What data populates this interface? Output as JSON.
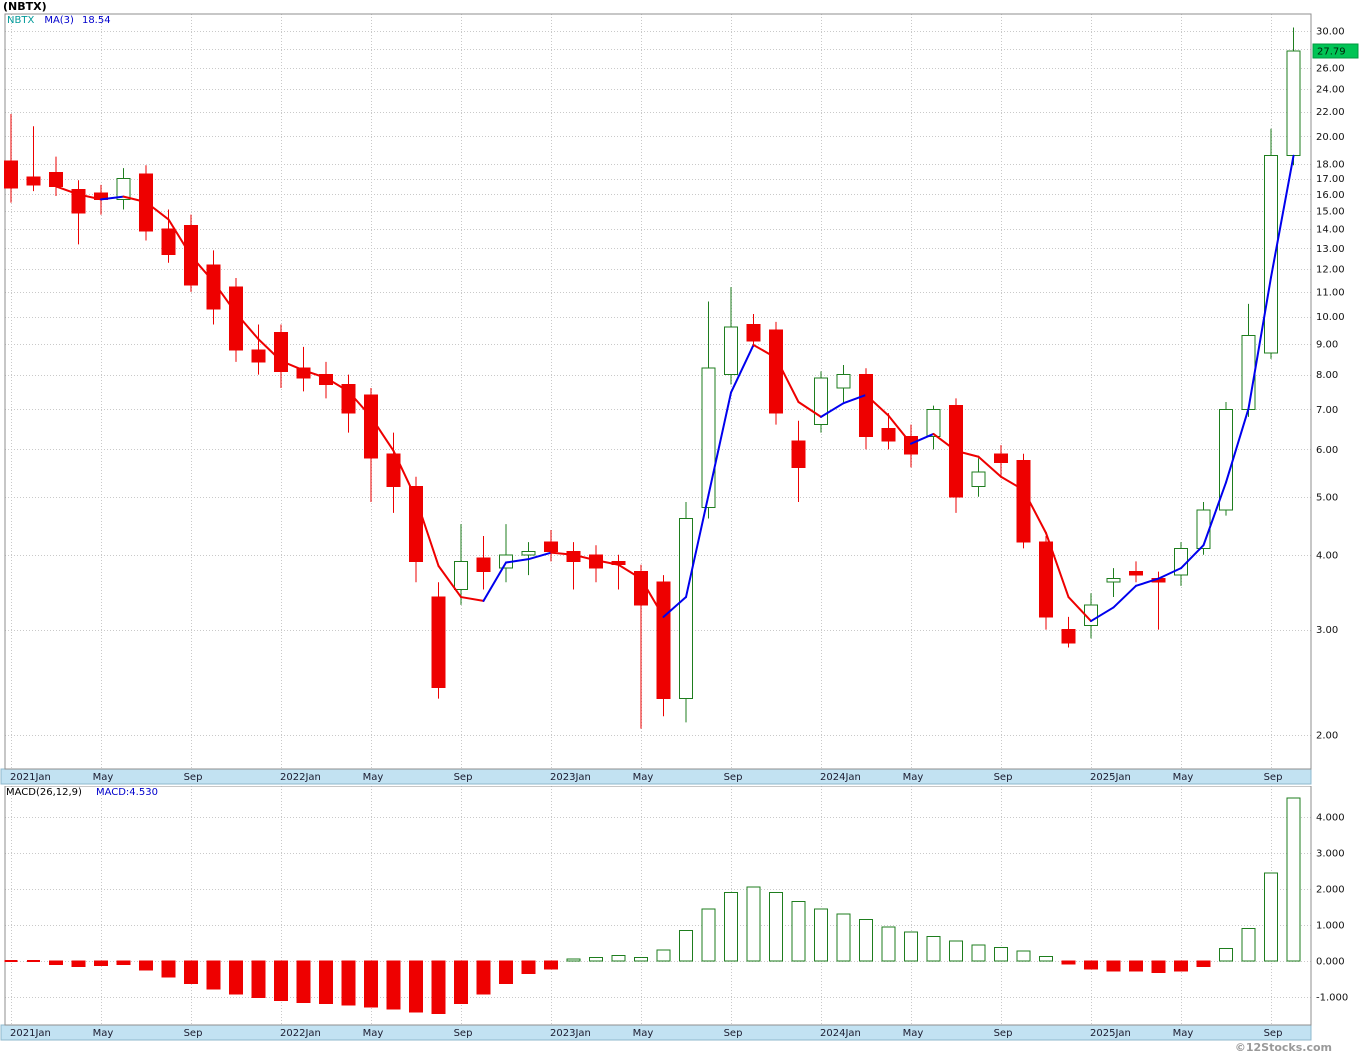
{
  "title": "(NBTX)",
  "symbol": "NBTX",
  "legend": {
    "symbol": "NBTX",
    "ma_label": "MA(3)",
    "ma_value": "18.54"
  },
  "last_price": "27.79",
  "macd_panel": {
    "label": "MACD(26,12,9)",
    "value_label": "MACD:4.530"
  },
  "footer": "©12Stocks.com",
  "colors": {
    "up": "#1e7d1e",
    "down": "#ee0000",
    "up_fill": "#ffffff",
    "ma_rising": "#0000ee",
    "ma_falling": "#ee0000",
    "grid": "#c9c9c9",
    "plot_border": "#8f8f8f",
    "axis_band": "#c2e2f2",
    "band_border": "#8fb8cc",
    "band_text": "#1a1a2e",
    "y_tick_text": "#111111",
    "badge_bg": "#00c455",
    "badge_text": "#00220a",
    "legend_symbol": "#009999",
    "legend_ma": "#0000cc",
    "watermark": "#9a9a9a"
  },
  "chart_data": [
    {
      "type": "candlestick",
      "title": "(NBTX) monthly price with MA(3)",
      "y_scale": "log",
      "ylim": [
        1.75,
        32.0
      ],
      "grid": true,
      "y_ticks": [
        30,
        28,
        26,
        24,
        22,
        20,
        18,
        17,
        16,
        15,
        14,
        13,
        12,
        11,
        10,
        9,
        8,
        7,
        6,
        5,
        4,
        3,
        2
      ],
      "x_tick_labels": [
        "2021Jan",
        "May",
        "Sep",
        "2022Jan",
        "May",
        "Sep",
        "2023Jan",
        "May",
        "Sep",
        "2024Jan",
        "May",
        "Sep",
        "2025Jan",
        "May",
        "Sep"
      ],
      "x_tick_indices": [
        0,
        4,
        8,
        12,
        16,
        20,
        24,
        28,
        32,
        36,
        40,
        44,
        48,
        52,
        56
      ],
      "ma": {
        "period": 3,
        "current": 18.54,
        "rising_color": "#0000ee",
        "falling_color": "#ee0000"
      },
      "last_close": 27.79,
      "categories": [
        "2021-01",
        "2021-02",
        "2021-03",
        "2021-04",
        "2021-05",
        "2021-06",
        "2021-07",
        "2021-08",
        "2021-09",
        "2021-10",
        "2021-11",
        "2021-12",
        "2022-01",
        "2022-02",
        "2022-03",
        "2022-04",
        "2022-05",
        "2022-06",
        "2022-07",
        "2022-08",
        "2022-09",
        "2022-10",
        "2022-11",
        "2022-12",
        "2023-01",
        "2023-02",
        "2023-03",
        "2023-04",
        "2023-05",
        "2023-06",
        "2023-07",
        "2023-08",
        "2023-09",
        "2023-10",
        "2023-11",
        "2023-12",
        "2024-01",
        "2024-02",
        "2024-03",
        "2024-04",
        "2024-05",
        "2024-06",
        "2024-07",
        "2024-08",
        "2024-09",
        "2024-10",
        "2024-11",
        "2024-12",
        "2025-01",
        "2025-02",
        "2025-03",
        "2025-04",
        "2025-05",
        "2025-06",
        "2025-07",
        "2025-08",
        "2025-09",
        "2025-10"
      ],
      "ohlc": [
        [
          18.2,
          21.8,
          15.5,
          16.4
        ],
        [
          17.1,
          20.8,
          16.2,
          16.6
        ],
        [
          17.4,
          18.5,
          15.9,
          16.5
        ],
        [
          16.3,
          16.9,
          13.2,
          14.9
        ],
        [
          16.1,
          16.6,
          14.8,
          15.7
        ],
        [
          15.7,
          17.7,
          15.1,
          17.0
        ],
        [
          17.3,
          17.9,
          13.4,
          13.9
        ],
        [
          14.0,
          15.1,
          12.3,
          12.7
        ],
        [
          14.2,
          14.8,
          11.0,
          11.3
        ],
        [
          12.2,
          12.9,
          9.7,
          10.3
        ],
        [
          11.2,
          11.6,
          8.4,
          8.8
        ],
        [
          8.8,
          9.7,
          8.0,
          8.4
        ],
        [
          9.4,
          9.7,
          7.6,
          8.1
        ],
        [
          8.2,
          8.9,
          7.5,
          7.9
        ],
        [
          8.0,
          8.4,
          7.3,
          7.7
        ],
        [
          7.7,
          8.0,
          6.4,
          6.9
        ],
        [
          7.4,
          7.6,
          4.9,
          5.8
        ],
        [
          5.9,
          6.4,
          4.7,
          5.2
        ],
        [
          5.2,
          5.4,
          3.6,
          3.9
        ],
        [
          3.4,
          3.6,
          2.3,
          2.4
        ],
        [
          3.5,
          4.5,
          3.3,
          3.9
        ],
        [
          3.95,
          4.3,
          3.5,
          3.75
        ],
        [
          3.8,
          4.5,
          3.6,
          4.0
        ],
        [
          4.0,
          4.2,
          3.7,
          4.05
        ],
        [
          4.2,
          4.4,
          3.9,
          4.05
        ],
        [
          4.05,
          4.2,
          3.5,
          3.9
        ],
        [
          4.0,
          4.15,
          3.6,
          3.8
        ],
        [
          3.9,
          4.0,
          3.5,
          3.85
        ],
        [
          3.75,
          3.85,
          2.05,
          3.3
        ],
        [
          3.6,
          3.7,
          2.15,
          2.3
        ],
        [
          2.3,
          4.9,
          2.1,
          4.6
        ],
        [
          4.8,
          10.6,
          4.6,
          8.2
        ],
        [
          8.0,
          11.2,
          7.7,
          9.6
        ],
        [
          9.7,
          10.1,
          8.9,
          9.1
        ],
        [
          9.5,
          9.8,
          6.6,
          6.9
        ],
        [
          6.2,
          6.7,
          4.9,
          5.6
        ],
        [
          6.6,
          8.1,
          6.4,
          7.9
        ],
        [
          7.6,
          8.3,
          7.2,
          8.0
        ],
        [
          8.0,
          8.2,
          6.0,
          6.3
        ],
        [
          6.5,
          6.9,
          6.0,
          6.2
        ],
        [
          6.3,
          6.6,
          5.6,
          5.9
        ],
        [
          6.3,
          7.1,
          6.0,
          7.0
        ],
        [
          7.1,
          7.3,
          4.7,
          5.0
        ],
        [
          5.2,
          5.8,
          5.0,
          5.5
        ],
        [
          5.9,
          6.1,
          5.4,
          5.7
        ],
        [
          5.75,
          5.9,
          4.1,
          4.2
        ],
        [
          4.2,
          4.3,
          3.0,
          3.15
        ],
        [
          3.0,
          3.15,
          2.8,
          2.85
        ],
        [
          3.05,
          3.45,
          2.9,
          3.3
        ],
        [
          3.6,
          3.8,
          3.4,
          3.65
        ],
        [
          3.75,
          3.9,
          3.6,
          3.7
        ],
        [
          3.65,
          3.75,
          3.0,
          3.6
        ],
        [
          3.7,
          4.2,
          3.55,
          4.1
        ],
        [
          4.1,
          4.9,
          4.0,
          4.75
        ],
        [
          4.75,
          7.2,
          4.65,
          7.0
        ],
        [
          7.0,
          10.5,
          6.8,
          9.3
        ],
        [
          8.7,
          20.6,
          8.5,
          18.6
        ],
        [
          18.6,
          30.4,
          17.9,
          27.79
        ]
      ]
    },
    {
      "type": "bar",
      "title": "MACD(26,12,9) histogram",
      "series_name": "MACD histogram",
      "params": {
        "slow": 26,
        "fast": 12,
        "signal": 9
      },
      "current_value": 4.53,
      "ylim": [
        -1.78,
        4.86
      ],
      "grid": true,
      "y_ticks": [
        4,
        3,
        2,
        1,
        0,
        -1
      ],
      "x_tick_labels": [
        "2021Jan",
        "May",
        "Sep",
        "2022Jan",
        "May",
        "Sep",
        "2023Jan",
        "May",
        "Sep",
        "2024Jan",
        "May",
        "Sep",
        "2025Jan",
        "May",
        "Sep"
      ],
      "x_tick_indices": [
        0,
        4,
        8,
        12,
        16,
        20,
        24,
        28,
        32,
        36,
        40,
        44,
        48,
        52,
        56
      ],
      "categories": [
        "2021-01",
        "2021-02",
        "2021-03",
        "2021-04",
        "2021-05",
        "2021-06",
        "2021-07",
        "2021-08",
        "2021-09",
        "2021-10",
        "2021-11",
        "2021-12",
        "2022-01",
        "2022-02",
        "2022-03",
        "2022-04",
        "2022-05",
        "2022-06",
        "2022-07",
        "2022-08",
        "2022-09",
        "2022-10",
        "2022-11",
        "2022-12",
        "2023-01",
        "2023-02",
        "2023-03",
        "2023-04",
        "2023-05",
        "2023-06",
        "2023-07",
        "2023-08",
        "2023-09",
        "2023-10",
        "2023-11",
        "2023-12",
        "2024-01",
        "2024-02",
        "2024-03",
        "2024-04",
        "2024-05",
        "2024-06",
        "2024-07",
        "2024-08",
        "2024-09",
        "2024-10",
        "2024-11",
        "2024-12",
        "2025-01",
        "2025-02",
        "2025-03",
        "2025-04",
        "2025-05",
        "2025-06",
        "2025-07",
        "2025-08",
        "2025-09",
        "2025-10"
      ],
      "values": [
        -0.02,
        -0.03,
        -0.1,
        -0.15,
        -0.12,
        -0.1,
        -0.25,
        -0.45,
        -0.62,
        -0.78,
        -0.92,
        -1.02,
        -1.1,
        -1.15,
        -1.18,
        -1.22,
        -1.28,
        -1.34,
        -1.42,
        -1.46,
        -1.18,
        -0.92,
        -0.62,
        -0.35,
        -0.22,
        0.05,
        0.1,
        0.15,
        0.1,
        0.3,
        0.85,
        1.45,
        1.9,
        2.05,
        1.9,
        1.65,
        1.45,
        1.3,
        1.15,
        0.95,
        0.8,
        0.68,
        0.55,
        0.45,
        0.38,
        0.28,
        0.12,
        -0.08,
        -0.22,
        -0.28,
        -0.28,
        -0.32,
        -0.28,
        -0.15,
        0.35,
        0.9,
        2.45,
        4.53
      ]
    }
  ]
}
